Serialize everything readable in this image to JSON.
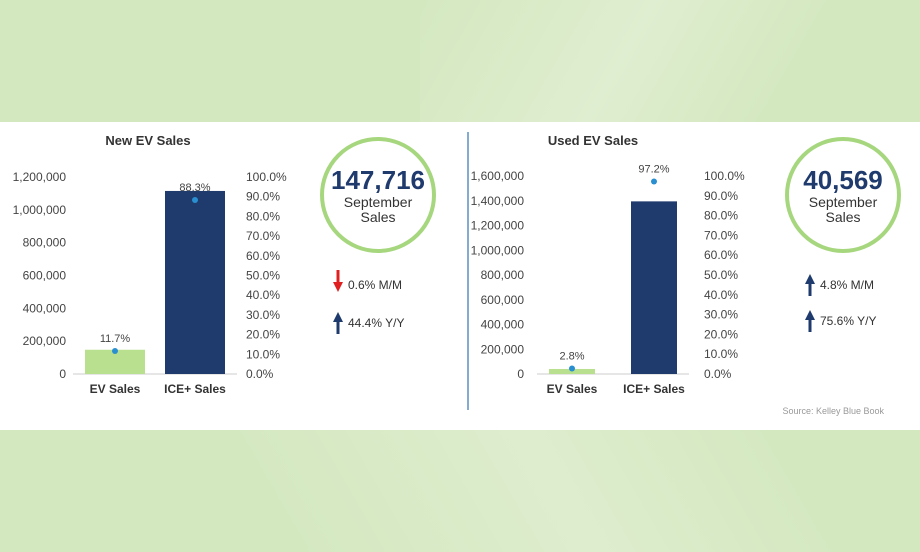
{
  "chart_data": [
    {
      "type": "bar",
      "title": "New EV Sales",
      "categories": [
        "EV Sales",
        "ICE+ Sales"
      ],
      "values": [
        147716,
        1115000
      ],
      "share_values": [
        11.7,
        88.3
      ],
      "share_labels": [
        "11.7%",
        "88.3%"
      ],
      "ylim": [
        0,
        1200000
      ],
      "yticks": [
        "0",
        "200,000",
        "400,000",
        "600,000",
        "800,000",
        "1,000,000",
        "1,200,000"
      ],
      "y2lim": [
        0,
        100
      ],
      "y2ticks": [
        "0.0%",
        "10.0%",
        "20.0%",
        "30.0%",
        "40.0%",
        "50.0%",
        "60.0%",
        "70.0%",
        "80.0%",
        "90.0%",
        "100.0%"
      ],
      "bar_colors": [
        "#b8e08e",
        "#1f3a6d"
      ]
    },
    {
      "type": "bar",
      "title": "Used EV Sales",
      "categories": [
        "EV Sales",
        "ICE+ Sales"
      ],
      "values": [
        40569,
        1395000
      ],
      "share_values": [
        2.8,
        97.2
      ],
      "share_labels": [
        "2.8%",
        "97.2%"
      ],
      "ylim": [
        0,
        1600000
      ],
      "yticks": [
        "0",
        "200,000",
        "400,000",
        "600,000",
        "800,000",
        "1,000,000",
        "1,200,000",
        "1,400,000",
        "1,600,000"
      ],
      "y2lim": [
        0,
        100
      ],
      "y2ticks": [
        "0.0%",
        "10.0%",
        "20.0%",
        "30.0%",
        "40.0%",
        "50.0%",
        "60.0%",
        "70.0%",
        "80.0%",
        "90.0%",
        "100.0%"
      ],
      "bar_colors": [
        "#b8e08e",
        "#1f3a6d"
      ]
    }
  ],
  "new_summary": {
    "number": "147,716",
    "line1": "September",
    "line2": "Sales",
    "mm_text": "0.6% M/M",
    "mm_direction": "down",
    "yy_text": "44.4% Y/Y",
    "yy_direction": "up"
  },
  "used_summary": {
    "number": "40,569",
    "line1": "September",
    "line2": "Sales",
    "mm_text": "4.8% M/M",
    "mm_direction": "up",
    "yy_text": "75.6% Y/Y",
    "yy_direction": "up"
  },
  "colors": {
    "navy": "#1f3a6d",
    "green": "#b8e08e",
    "circle": "#a6d77e",
    "down_arrow": "#e02020",
    "marker": "#2a8fd0"
  },
  "source": "Source: Kelley Blue Book"
}
